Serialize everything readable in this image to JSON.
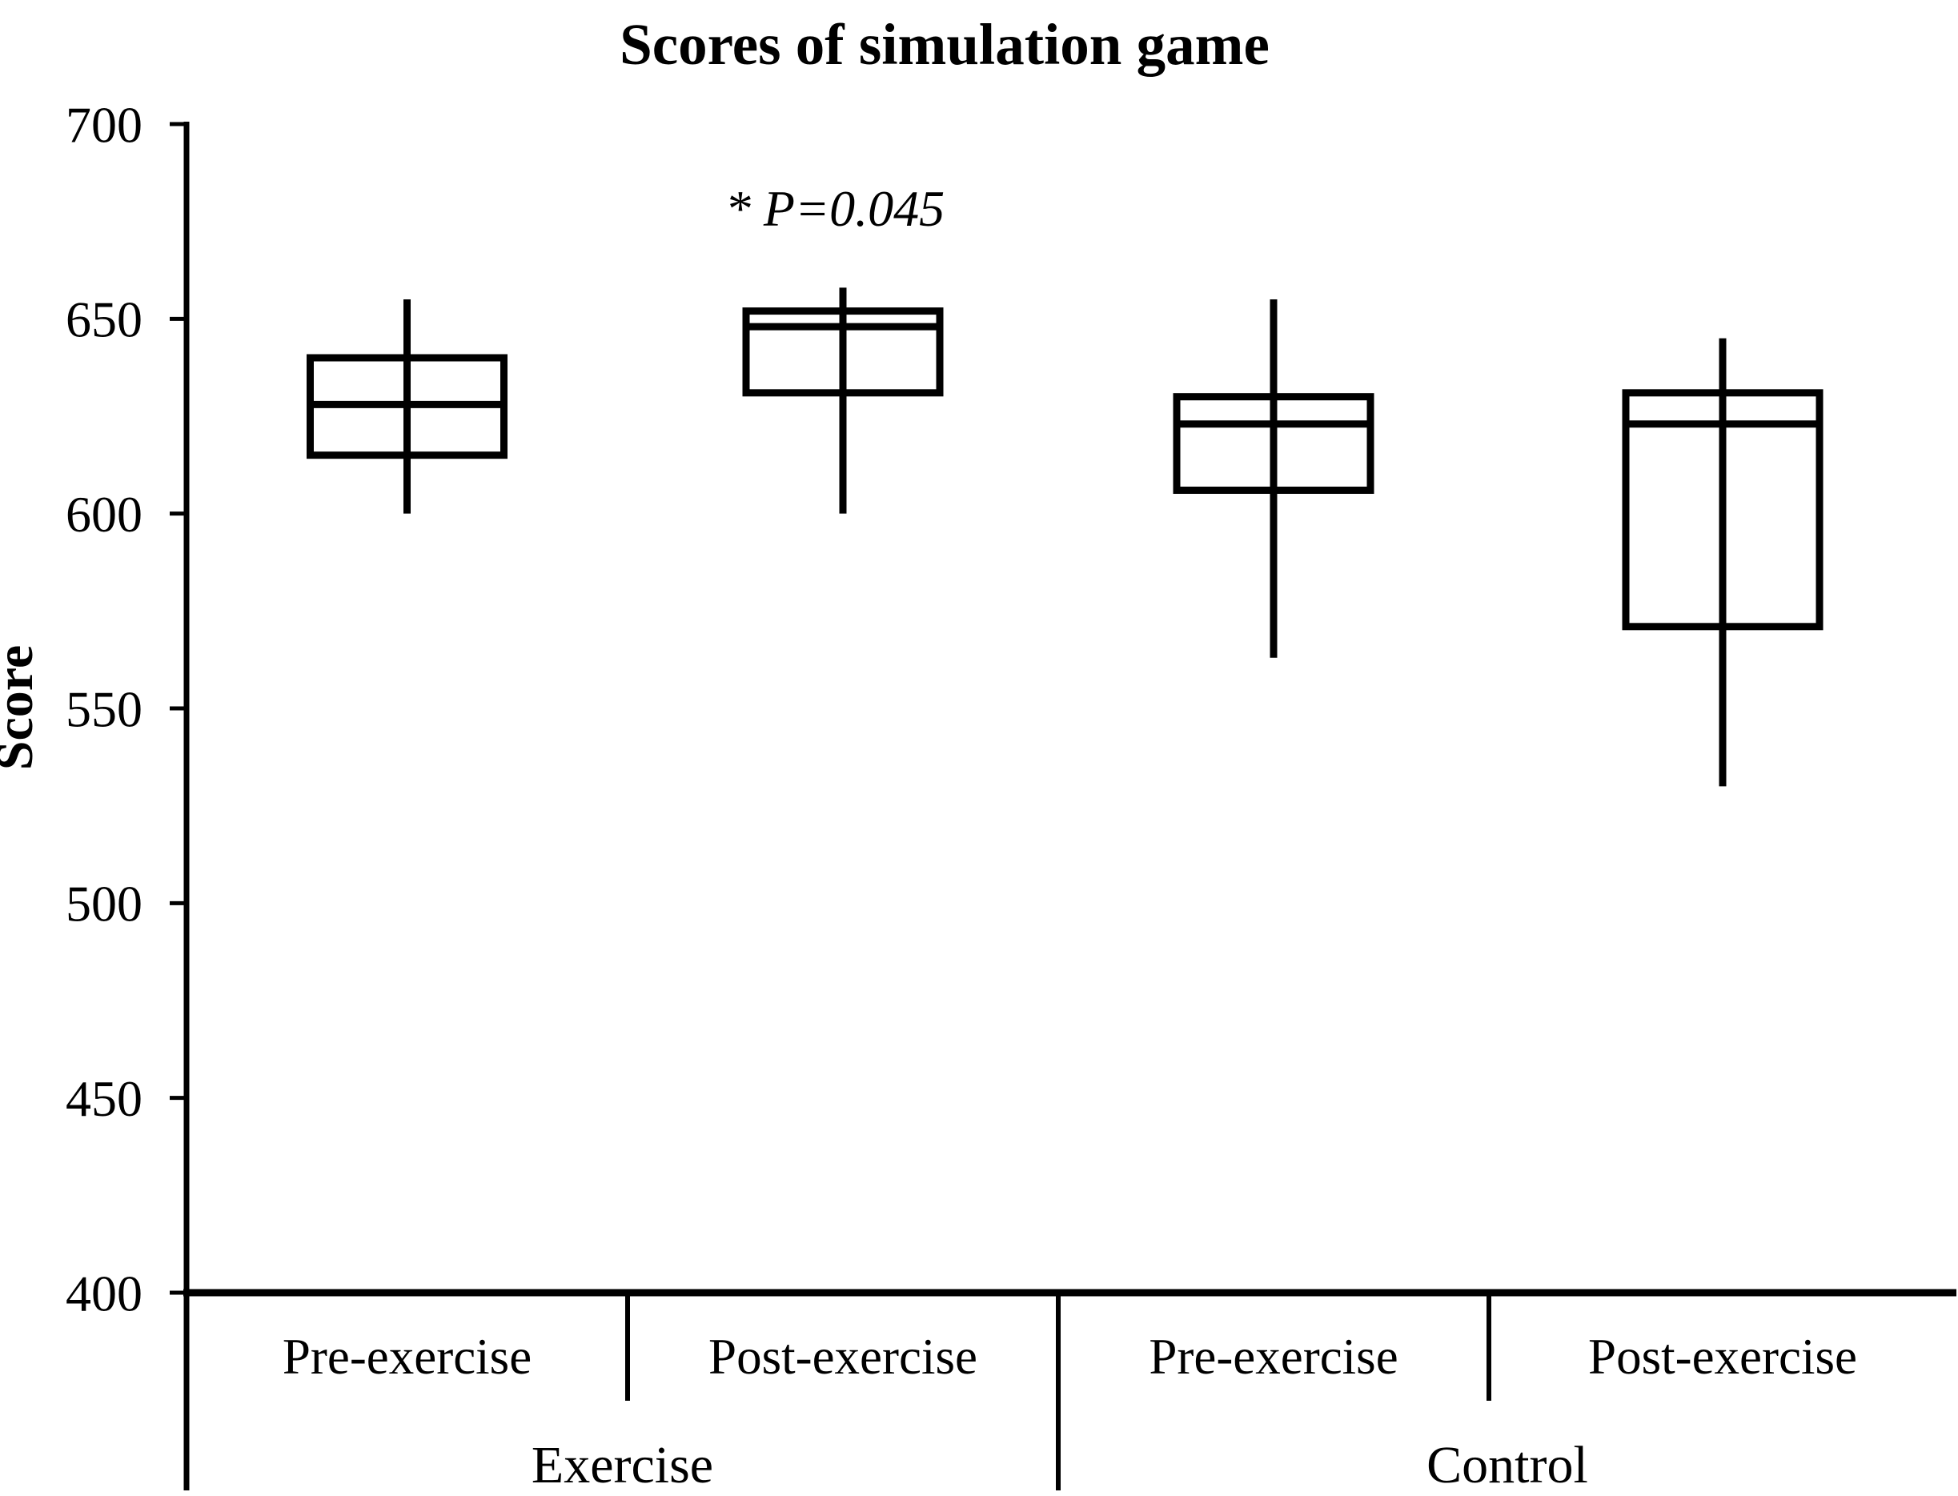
{
  "figure": {
    "title": "Scores of simulation game",
    "annotation": "* P=0.045",
    "y_axis_label": "Score"
  },
  "chart_data": {
    "type": "boxplot",
    "title": "Scores of simulation game",
    "ylabel": "Score",
    "xlabel": "",
    "ylim": [
      400,
      700
    ],
    "yticks": [
      700,
      650,
      600,
      550,
      500,
      450,
      400
    ],
    "grid": false,
    "legend": "none",
    "line_color": "#000000",
    "background_color": "#ffffff",
    "annotation": {
      "text": "* P=0.045",
      "series_index": 1
    },
    "group_labels": [
      "Exercise",
      "Control"
    ],
    "group_spans": [
      [
        0,
        1
      ],
      [
        2,
        3
      ]
    ],
    "categories": [
      "Pre-exercise",
      "Post-exercise",
      "Pre-exercise",
      "Post-exercise"
    ],
    "series": [
      {
        "group": "Exercise",
        "category": "Pre-exercise",
        "min": 600,
        "q1": 615,
        "median": 628,
        "q3": 640,
        "max": 655
      },
      {
        "group": "Exercise",
        "category": "Post-exercise",
        "min": 600,
        "q1": 631,
        "median": 648,
        "q3": 652,
        "max": 658
      },
      {
        "group": "Control",
        "category": "Pre-exercise",
        "min": 563,
        "q1": 606,
        "median": 623,
        "q3": 630,
        "max": 655
      },
      {
        "group": "Control",
        "category": "Post-exercise",
        "min": 530,
        "q1": 571,
        "median": 623,
        "q3": 631,
        "max": 645
      }
    ]
  }
}
